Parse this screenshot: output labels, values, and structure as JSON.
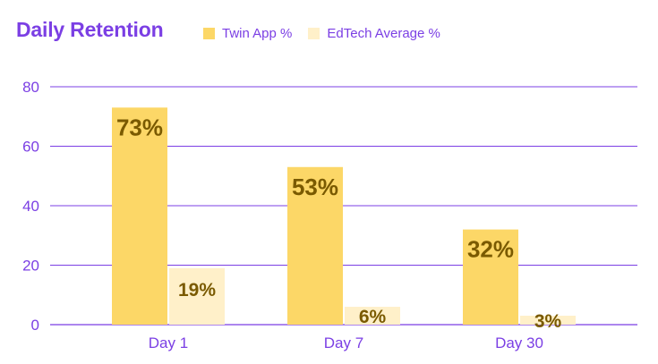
{
  "chart_data": {
    "type": "bar",
    "title": "Daily Retention",
    "xlabel": "",
    "ylabel": "",
    "ylim": [
      0,
      80
    ],
    "yticks": [
      0,
      20,
      40,
      60,
      80
    ],
    "categories": [
      "Day 1",
      "Day 7",
      "Day 30"
    ],
    "series": [
      {
        "name": "Twin App %",
        "values": [
          73,
          53,
          32
        ],
        "data_labels": [
          "73%",
          "53%",
          "32%"
        ],
        "color": "#fcd767"
      },
      {
        "name": "EdTech Average %",
        "values": [
          19,
          6,
          3
        ],
        "data_labels": [
          "19%",
          "6%",
          "3%"
        ],
        "color": "#fff0c9"
      }
    ],
    "grid": true,
    "legend_position": "top",
    "colors": {
      "title": "#7b3fe4",
      "axis_text": "#7b3fe4",
      "gridline": "#7b3fe4",
      "data_label": "#7a5a00"
    }
  }
}
